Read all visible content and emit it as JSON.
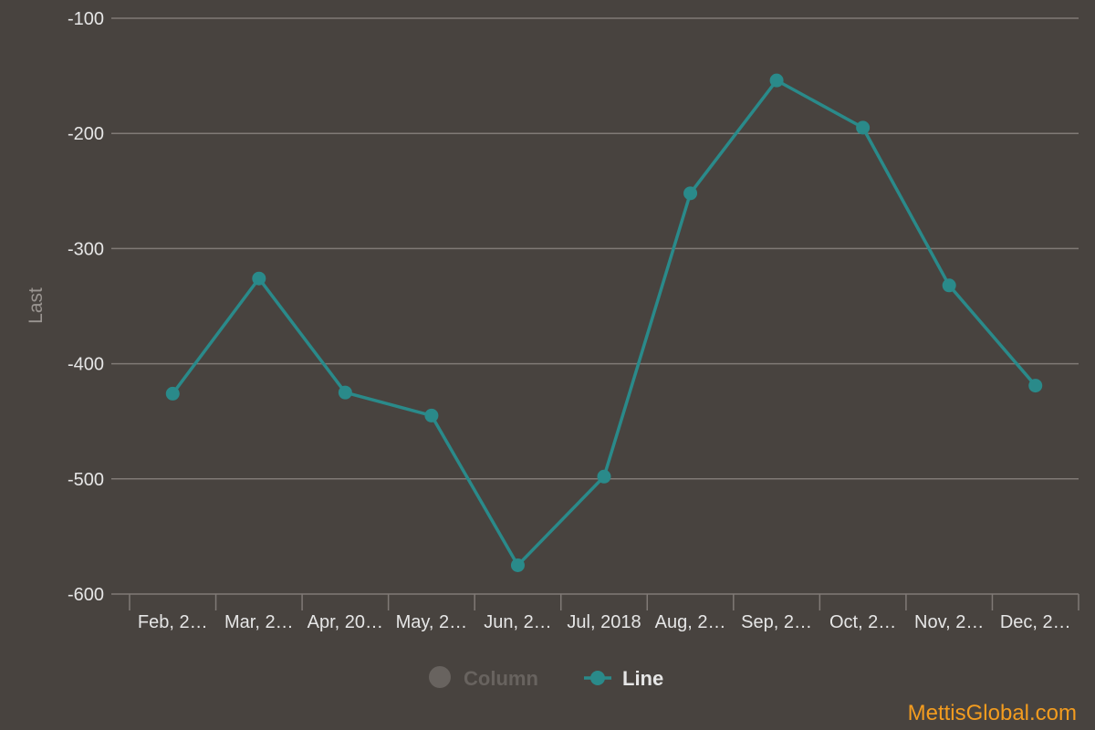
{
  "colors": {
    "background": "#48433f",
    "grid": "#807a76",
    "line": "#2a8a8a",
    "tick_text": "#e6e6e6",
    "axis_title": "#9a9591",
    "legend_hidden": "#68635f",
    "legend_active": "#e6e6e6",
    "watermark": "#f39c1f"
  },
  "chart_data": {
    "type": "line",
    "ylabel": "Last",
    "ylim": [
      -600,
      -100
    ],
    "yticks": [
      -100,
      -200,
      -300,
      -400,
      -500,
      -600
    ],
    "ytick_labels": [
      "-100",
      "-200",
      "-300",
      "-400",
      "-500",
      "-600"
    ],
    "grid": true,
    "categories": [
      "Feb, 2…",
      "Mar, 2…",
      "Apr, 20…",
      "May, 2…",
      "Jun, 2…",
      "Jul, 2018",
      "Aug, 2…",
      "Sep, 2…",
      "Oct, 2…",
      "Nov, 2…",
      "Dec, 2…"
    ],
    "series": [
      {
        "name": "Line",
        "type": "line",
        "values": [
          -426,
          -326,
          -425,
          -445,
          -575,
          -498,
          -252,
          -154,
          -195,
          -332,
          -419
        ]
      }
    ],
    "legend": {
      "position": "bottom-center",
      "items": [
        {
          "label": "Column",
          "symbol": "circle",
          "visible": false
        },
        {
          "label": "Line",
          "symbol": "line-marker",
          "visible": true
        }
      ]
    }
  },
  "watermark": "MettisGlobal.com"
}
